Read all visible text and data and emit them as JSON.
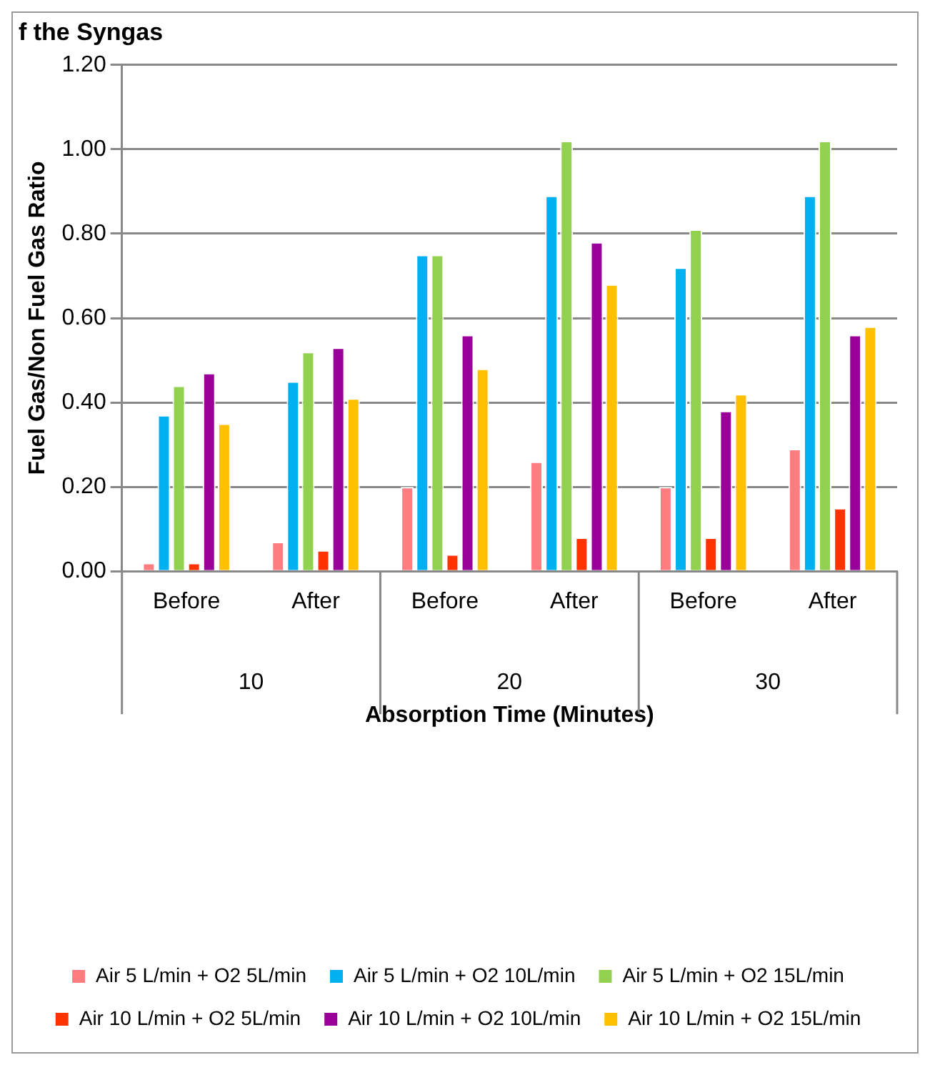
{
  "chart_data": {
    "type": "bar",
    "title": "f the Syngas",
    "xlabel": "Absorption Time (Minutes)",
    "ylabel": "Fuel Gas/Non Fuel Gas Ratio",
    "categories": [
      "Before",
      "After",
      "Before",
      "After",
      "Before",
      "After"
    ],
    "annotations": [
      "10",
      "20",
      "30"
    ],
    "series": [
      {
        "name": "Air 5 L/min + O2 5L/min",
        "color": "#ff7c80",
        "values": [
          0.02,
          0.07,
          0.2,
          0.26,
          0.2,
          0.29
        ]
      },
      {
        "name": "Air 5 L/min + O2 10L/min",
        "color": "#00b0f0",
        "values": [
          0.37,
          0.45,
          0.75,
          0.89,
          0.72,
          0.89
        ]
      },
      {
        "name": "Air 5 L/min + O2 15L/min",
        "color": "#92d050",
        "values": [
          0.44,
          0.52,
          0.75,
          1.02,
          0.81,
          1.02
        ]
      },
      {
        "name": "Air 10 L/min + O2 5L/min",
        "color": "#ff3300",
        "values": [
          0.02,
          0.05,
          0.04,
          0.08,
          0.08,
          0.15
        ]
      },
      {
        "name": "Air 10 L/min + O2 10L/min",
        "color": "#990099",
        "values": [
          0.47,
          0.53,
          0.56,
          0.78,
          0.38,
          0.56
        ]
      },
      {
        "name": "Air 10 L/min + O2 15L/min",
        "color": "#ffc000",
        "values": [
          0.35,
          0.41,
          0.48,
          0.68,
          0.42,
          0.58
        ]
      }
    ],
    "ylim": [
      0,
      1.2
    ],
    "yticks": [
      {
        "value": 0,
        "label": "0.00"
      },
      {
        "value": 0.2,
        "label": "0.20"
      },
      {
        "value": 0.4,
        "label": "0.40"
      },
      {
        "value": 0.6,
        "label": "0.60"
      },
      {
        "value": 0.8,
        "label": "0.80"
      },
      {
        "value": 1.0,
        "label": "1.00"
      },
      {
        "value": 1.2,
        "label": "1.20"
      }
    ],
    "grid": "y",
    "legend": "bottom"
  }
}
